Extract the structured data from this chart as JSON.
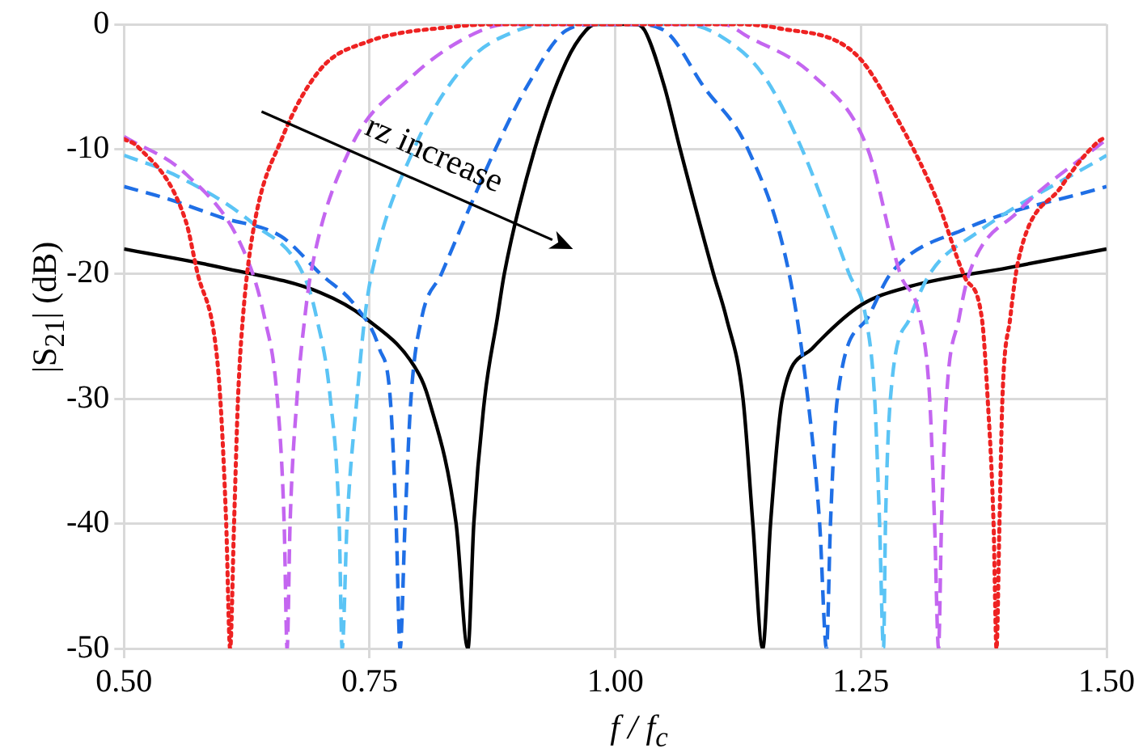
{
  "chart_data": {
    "type": "line",
    "xlabel": "f / f$_{c}$",
    "ylabel": "|S$_{21}$| (dB)",
    "annotations": [
      "rz increase"
    ],
    "xlim": [
      0.5,
      1.5
    ],
    "xticks": [
      {
        "value": 0.5,
        "label": "0.50"
      },
      {
        "value": 0.75,
        "label": "0.75"
      },
      {
        "value": 1,
        "label": "1.00"
      },
      {
        "value": 1.25,
        "label": "1.25"
      },
      {
        "value": 1.5,
        "label": "1.50"
      }
    ],
    "ylim": [
      -50,
      0
    ],
    "yticks": [
      -50,
      -40,
      -30,
      -20,
      -10,
      0
    ],
    "grid": true,
    "legend": false,
    "marker": "none",
    "series": [
      {
        "color": "#ee2222",
        "line_style": "dotted",
        "x": [
          0.5,
          0.514,
          0.563,
          0.575,
          0.592,
          0.598,
          0.604,
          0.608,
          0.612,
          0.616,
          0.621,
          0.632,
          0.661,
          0.7,
          0.748,
          0.835,
          0.88,
          1.12,
          1.165,
          1.246,
          1.29,
          1.327,
          1.356,
          1.373,
          1.379,
          1.385,
          1.388,
          1.391,
          1.394,
          1.402,
          1.41,
          1.454,
          1.49,
          1.5
        ],
        "values": [
          -9.2,
          -9.8,
          -15.8,
          -20,
          -25,
          -30,
          -40,
          -50,
          -40,
          -30,
          -23.5,
          -16.3,
          -9.1,
          -3.6,
          -1.4,
          -0.2,
          0,
          0,
          -0.3,
          -2.5,
          -8,
          -14,
          -20.3,
          -23.5,
          -30,
          -40,
          -50,
          -40,
          -30,
          -23.5,
          -19,
          -13,
          -9.5,
          -9
        ]
      },
      {
        "color": "#c466f0",
        "line_style": "dashed",
        "x": [
          0.5,
          0.563,
          0.621,
          0.643,
          0.656,
          0.663,
          0.666,
          0.669,
          0.676,
          0.684,
          0.69,
          0.73,
          0.79,
          0.85,
          0.89,
          1.11,
          1.135,
          1.2,
          1.257,
          1.29,
          1.31,
          1.32,
          1.325,
          1.329,
          1.332,
          1.337,
          1.35,
          1.36,
          1.41,
          1.5
        ],
        "values": [
          -9,
          -12,
          -18,
          -23.5,
          -30,
          -40,
          -50,
          -40,
          -30,
          -23.5,
          -20,
          -10,
          -4.4,
          -1,
          0,
          0,
          -1,
          -4,
          -10,
          -20,
          -23.5,
          -30,
          -40,
          -50,
          -40,
          -30,
          -23.5,
          -20,
          -15,
          -9.2
        ]
      },
      {
        "color": "#5bc4f5",
        "line_style": "dashed",
        "x": [
          0.5,
          0.55,
          0.632,
          0.684,
          0.696,
          0.71,
          0.719,
          0.722,
          0.727,
          0.737,
          0.745,
          0.752,
          0.795,
          0.85,
          0.9,
          0.93,
          1.07,
          1.108,
          1.15,
          1.19,
          1.238,
          1.255,
          1.264,
          1.269,
          1.273,
          1.275,
          1.28,
          1.3,
          1.32,
          1.368,
          1.5
        ],
        "values": [
          -10.5,
          -12,
          -16,
          -20.3,
          -23.5,
          -30,
          -40,
          -50,
          -40,
          -30,
          -23.5,
          -20,
          -10,
          -3,
          -0.5,
          0,
          0,
          -1,
          -4,
          -10,
          -20,
          -23.5,
          -30,
          -40,
          -50,
          -40,
          -30,
          -23.5,
          -20,
          -16.7,
          -10.5
        ]
      },
      {
        "color": "#1f6fe6",
        "line_style": "dashed",
        "x": [
          0.5,
          0.545,
          0.6,
          0.66,
          0.7,
          0.736,
          0.76,
          0.771,
          0.777,
          0.781,
          0.786,
          0.792,
          0.803,
          0.823,
          0.85,
          0.878,
          0.91,
          0.95,
          0.98,
          1.02,
          1.05,
          1.09,
          1.135,
          1.177,
          1.196,
          1.208,
          1.215,
          1.219,
          1.226,
          1.257,
          1.28,
          1.356,
          1.5
        ],
        "values": [
          -13,
          -14,
          -15.5,
          -17,
          -20,
          -22.6,
          -26,
          -30,
          -40,
          -50,
          -40,
          -30,
          -23.5,
          -20,
          -15,
          -10,
          -5,
          -0.5,
          0,
          0,
          -0.5,
          -5,
          -10,
          -20,
          -30,
          -40,
          -50,
          -40,
          -30,
          -23.5,
          -20,
          -16.4,
          -13
        ]
      },
      {
        "color": "#000000",
        "line_style": "solid",
        "x": [
          0.5,
          0.6,
          0.7,
          0.745,
          0.8,
          0.81,
          0.838,
          0.85,
          0.856,
          0.867,
          0.88,
          0.887,
          0.918,
          0.95,
          0.97,
          0.98,
          1.02,
          1.03,
          1.05,
          1.066,
          1.1,
          1.113,
          1.13,
          1.14,
          1.15,
          1.158,
          1.17,
          1.2,
          1.25,
          1.3,
          1.4,
          1.5
        ],
        "values": [
          -18,
          -19.5,
          -21.5,
          -23.5,
          -28,
          -30,
          -40,
          -50,
          -40,
          -30,
          -23.5,
          -20,
          -10,
          -3,
          -0.5,
          0,
          0,
          -0.5,
          -5,
          -10,
          -20,
          -23.5,
          -30,
          -40,
          -50,
          -40,
          -30,
          -26,
          -22.5,
          -21,
          -19.5,
          -18
        ]
      }
    ]
  }
}
